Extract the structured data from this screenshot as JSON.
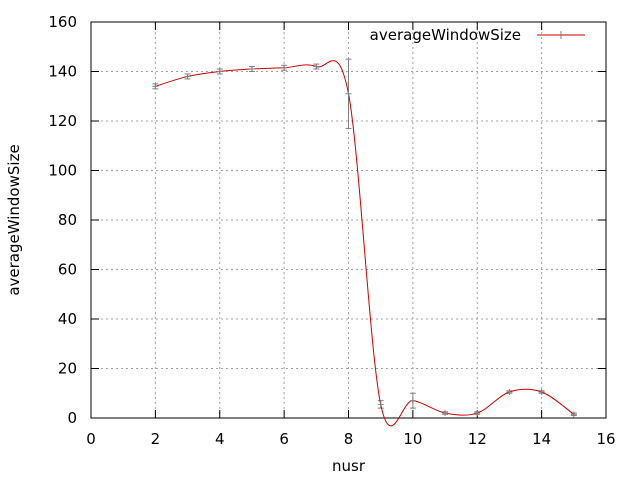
{
  "chart_data": {
    "type": "line",
    "title": "",
    "xlabel": "nusr",
    "ylabel": "averageWindowSize",
    "xlim": [
      0,
      16
    ],
    "ylim": [
      0,
      160
    ],
    "x_ticks": [
      0,
      2,
      4,
      6,
      8,
      10,
      12,
      14,
      16
    ],
    "y_ticks": [
      0,
      20,
      40,
      60,
      80,
      100,
      120,
      140,
      160
    ],
    "grid": true,
    "legend_position": "top-right",
    "series": [
      {
        "name": "averageWindowSize",
        "color": "#cc0000",
        "errorbar_color": "#808080",
        "smooth": true,
        "points": [
          {
            "x": 2,
            "y": 134,
            "err": 1
          },
          {
            "x": 3,
            "y": 138,
            "err": 1
          },
          {
            "x": 4,
            "y": 140,
            "err": 1
          },
          {
            "x": 5,
            "y": 141,
            "err": 1
          },
          {
            "x": 6,
            "y": 141.5,
            "err": 1
          },
          {
            "x": 7,
            "y": 142,
            "err": 1
          },
          {
            "x": 8,
            "y": 131,
            "err": 14
          },
          {
            "x": 9,
            "y": 5.5,
            "err": 1.5
          },
          {
            "x": 10,
            "y": 7,
            "err": 3
          },
          {
            "x": 11,
            "y": 2,
            "err": 0.5
          },
          {
            "x": 12,
            "y": 2,
            "err": 0.5
          },
          {
            "x": 13,
            "y": 10.5,
            "err": 0.5
          },
          {
            "x": 14,
            "y": 10.5,
            "err": 0.5
          },
          {
            "x": 15,
            "y": 1.5,
            "err": 0.5
          }
        ]
      }
    ]
  }
}
